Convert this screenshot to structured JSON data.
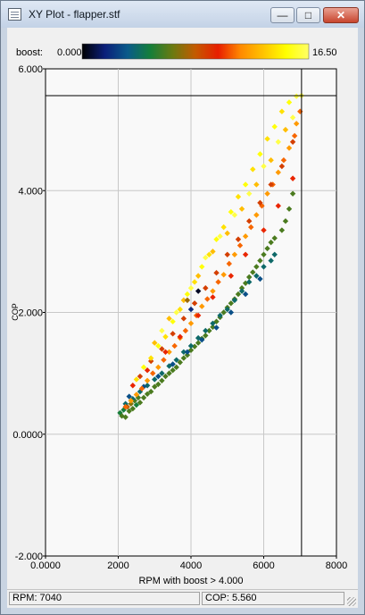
{
  "window": {
    "title": "XY Plot - flapper.stf",
    "buttons": {
      "minimize": "—",
      "maximize": "□",
      "close": "✕"
    }
  },
  "status": {
    "rpm": "RPM: 7040",
    "cop": "COP: 5.560"
  },
  "colors": {
    "plot_bg": "#f9f9f9",
    "grid": "#c8c8c8",
    "cursor": "#000000"
  },
  "chart_data": {
    "type": "scatter",
    "title": "",
    "xlabel": "RPM with boost > 4.000",
    "ylabel": "COP",
    "xlim": [
      0,
      8000
    ],
    "ylim": [
      -2,
      6
    ],
    "xticks": [
      0,
      2000,
      4000,
      6000,
      8000
    ],
    "yticks": [
      -2,
      0,
      2,
      4,
      6
    ],
    "xtick_labels": [
      "0.0000",
      "2000",
      "4000",
      "6000",
      "8000"
    ],
    "ytick_labels": [
      "-2.000",
      "0.0000",
      "2.000",
      "4.000",
      "6.000"
    ],
    "grid": true,
    "cursor": {
      "x": 7040,
      "y": 5.56
    },
    "color_scale": {
      "label": "boost:",
      "min_label": "0.000",
      "max_label": "16.50",
      "min": 0,
      "max": 16.5,
      "stops": [
        "#000000",
        "#0b1f7a",
        "#0a5a8a",
        "#137e3a",
        "#6b7a10",
        "#c45a00",
        "#e81e00",
        "#ff8a00",
        "#ffc400",
        "#ffff00",
        "#ffff66"
      ]
    },
    "series": [
      {
        "color_by": "boost",
        "points": [
          [
            2050,
            0.35,
            5
          ],
          [
            2100,
            0.3,
            6
          ],
          [
            2150,
            0.4,
            5
          ],
          [
            2200,
            0.28,
            6
          ],
          [
            2250,
            0.45,
            8
          ],
          [
            2300,
            0.38,
            6
          ],
          [
            2350,
            0.5,
            7
          ],
          [
            2400,
            0.42,
            6
          ],
          [
            2450,
            0.55,
            6
          ],
          [
            2500,
            0.48,
            5
          ],
          [
            2550,
            0.6,
            6
          ],
          [
            2600,
            0.52,
            6
          ],
          [
            2700,
            0.6,
            6
          ],
          [
            2800,
            0.66,
            6
          ],
          [
            2900,
            0.7,
            6
          ],
          [
            3000,
            0.78,
            6
          ],
          [
            3100,
            0.82,
            6
          ],
          [
            3200,
            0.88,
            6
          ],
          [
            3300,
            0.95,
            6
          ],
          [
            3400,
            1.0,
            6
          ],
          [
            3500,
            1.05,
            6
          ],
          [
            3600,
            1.1,
            6
          ],
          [
            3700,
            1.18,
            6
          ],
          [
            3800,
            1.25,
            6
          ],
          [
            3900,
            1.3,
            6
          ],
          [
            4000,
            1.38,
            6
          ],
          [
            4100,
            1.44,
            6
          ],
          [
            4200,
            1.5,
            6
          ],
          [
            4300,
            1.57,
            6
          ],
          [
            4400,
            1.62,
            6
          ],
          [
            4500,
            1.7,
            6
          ],
          [
            4600,
            1.76,
            6
          ],
          [
            4700,
            1.85,
            6
          ],
          [
            4800,
            1.92,
            6
          ],
          [
            4900,
            2.0,
            6
          ],
          [
            5000,
            2.08,
            6
          ],
          [
            5100,
            2.15,
            6
          ],
          [
            5200,
            2.22,
            6
          ],
          [
            5300,
            2.3,
            6
          ],
          [
            5400,
            2.4,
            6
          ],
          [
            5500,
            2.48,
            6
          ],
          [
            5600,
            2.58,
            6
          ],
          [
            5700,
            2.66,
            6
          ],
          [
            5800,
            2.75,
            6
          ],
          [
            5900,
            2.85,
            6
          ],
          [
            6000,
            2.95,
            6
          ],
          [
            6100,
            3.05,
            6
          ],
          [
            6200,
            3.15,
            6
          ],
          [
            6300,
            3.22,
            6
          ],
          [
            2200,
            0.5,
            4
          ],
          [
            2400,
            0.58,
            4
          ],
          [
            2600,
            0.7,
            4
          ],
          [
            2800,
            0.8,
            4
          ],
          [
            3000,
            0.9,
            4
          ],
          [
            3200,
            1.0,
            4
          ],
          [
            3400,
            1.12,
            4
          ],
          [
            3600,
            1.22,
            4
          ],
          [
            3800,
            1.35,
            4
          ],
          [
            4000,
            1.45,
            4
          ],
          [
            4200,
            1.58,
            4
          ],
          [
            4400,
            1.7,
            4
          ],
          [
            4600,
            1.82,
            4
          ],
          [
            4800,
            1.95,
            4
          ],
          [
            5000,
            2.05,
            4
          ],
          [
            5200,
            2.2,
            4
          ],
          [
            5400,
            2.35,
            4
          ],
          [
            5600,
            2.5,
            4
          ],
          [
            5800,
            2.6,
            4
          ],
          [
            6000,
            2.75,
            4
          ],
          [
            6200,
            2.85,
            4
          ],
          [
            2300,
            0.62,
            3
          ],
          [
            2700,
            0.78,
            3
          ],
          [
            3100,
            0.95,
            3
          ],
          [
            3500,
            1.15,
            3
          ],
          [
            3900,
            1.35,
            3
          ],
          [
            4300,
            1.55,
            3
          ],
          [
            4700,
            1.75,
            3
          ],
          [
            5100,
            2.0,
            3
          ],
          [
            5500,
            2.3,
            3
          ],
          [
            5900,
            2.55,
            3
          ],
          [
            6300,
            2.95,
            4
          ],
          [
            6500,
            3.35,
            6
          ],
          [
            6700,
            3.7,
            6
          ],
          [
            6800,
            3.95,
            6
          ],
          [
            6600,
            3.5,
            6
          ],
          [
            2200,
            0.45,
            11
          ],
          [
            2350,
            0.55,
            12
          ],
          [
            2500,
            0.65,
            12
          ],
          [
            2650,
            0.75,
            11
          ],
          [
            2800,
            0.88,
            12
          ],
          [
            2950,
            1.0,
            11
          ],
          [
            3100,
            1.1,
            12
          ],
          [
            3250,
            1.22,
            11
          ],
          [
            3400,
            1.35,
            12
          ],
          [
            3550,
            1.45,
            11
          ],
          [
            3700,
            1.58,
            12
          ],
          [
            3850,
            1.7,
            11
          ],
          [
            4000,
            1.82,
            12
          ],
          [
            4150,
            1.95,
            11
          ],
          [
            4300,
            2.1,
            12
          ],
          [
            4450,
            2.22,
            11
          ],
          [
            4600,
            2.35,
            12
          ],
          [
            4750,
            2.5,
            11
          ],
          [
            4900,
            2.62,
            12
          ],
          [
            5050,
            2.8,
            11
          ],
          [
            5200,
            2.95,
            12
          ],
          [
            5350,
            3.1,
            11
          ],
          [
            5500,
            3.25,
            12
          ],
          [
            5650,
            3.4,
            11
          ],
          [
            5800,
            3.6,
            12
          ],
          [
            5950,
            3.75,
            11
          ],
          [
            6100,
            3.95,
            12
          ],
          [
            6250,
            4.1,
            11
          ],
          [
            6400,
            4.3,
            12
          ],
          [
            6550,
            4.5,
            11
          ],
          [
            6700,
            4.7,
            12
          ],
          [
            6850,
            4.9,
            11
          ],
          [
            6900,
            5.1,
            12
          ],
          [
            7000,
            5.3,
            11
          ],
          [
            2600,
            0.95,
            9
          ],
          [
            2900,
            1.2,
            9
          ],
          [
            3200,
            1.4,
            9
          ],
          [
            3500,
            1.65,
            9
          ],
          [
            3800,
            1.9,
            9
          ],
          [
            4100,
            2.15,
            9
          ],
          [
            4400,
            2.4,
            9
          ],
          [
            4700,
            2.65,
            9
          ],
          [
            5000,
            2.95,
            9
          ],
          [
            5300,
            3.2,
            9
          ],
          [
            5600,
            3.5,
            9
          ],
          [
            5900,
            3.8,
            9
          ],
          [
            6200,
            4.1,
            9
          ],
          [
            6500,
            4.4,
            9
          ],
          [
            6800,
            4.8,
            9
          ],
          [
            2400,
            0.8,
            10
          ],
          [
            2800,
            1.05,
            10
          ],
          [
            3300,
            1.35,
            10
          ],
          [
            3700,
            1.6,
            10
          ],
          [
            4200,
            1.95,
            10
          ],
          [
            4600,
            2.25,
            10
          ],
          [
            5100,
            2.6,
            10
          ],
          [
            5500,
            2.95,
            10
          ],
          [
            6000,
            3.35,
            10
          ],
          [
            6400,
            3.75,
            10
          ],
          [
            6800,
            4.2,
            10
          ],
          [
            2500,
            0.9,
            14
          ],
          [
            2700,
            1.1,
            15
          ],
          [
            2900,
            1.25,
            14
          ],
          [
            3100,
            1.45,
            15
          ],
          [
            3300,
            1.6,
            14
          ],
          [
            3500,
            1.85,
            15
          ],
          [
            3700,
            2.05,
            14
          ],
          [
            3900,
            2.3,
            15
          ],
          [
            4100,
            2.5,
            14
          ],
          [
            4300,
            2.75,
            15
          ],
          [
            4500,
            2.95,
            14
          ],
          [
            4700,
            3.2,
            15
          ],
          [
            4900,
            3.4,
            14
          ],
          [
            5100,
            3.65,
            15
          ],
          [
            5300,
            3.9,
            14
          ],
          [
            5500,
            4.1,
            15
          ],
          [
            5700,
            4.35,
            14
          ],
          [
            5900,
            4.6,
            15
          ],
          [
            6100,
            4.85,
            14
          ],
          [
            6300,
            5.05,
            15
          ],
          [
            6500,
            5.3,
            14
          ],
          [
            6700,
            5.45,
            15
          ],
          [
            6900,
            5.55,
            16
          ],
          [
            7040,
            5.56,
            16
          ],
          [
            3000,
            1.5,
            13
          ],
          [
            3400,
            1.9,
            13
          ],
          [
            3800,
            2.2,
            13
          ],
          [
            4200,
            2.6,
            13
          ],
          [
            4600,
            3.0,
            13
          ],
          [
            5000,
            3.3,
            13
          ],
          [
            5400,
            3.7,
            13
          ],
          [
            5800,
            4.1,
            13
          ],
          [
            6200,
            4.5,
            13
          ],
          [
            6600,
            5.0,
            13
          ],
          [
            3200,
            1.7,
            16
          ],
          [
            3600,
            2.0,
            16
          ],
          [
            4000,
            2.4,
            16
          ],
          [
            4400,
            2.9,
            16
          ],
          [
            4800,
            3.25,
            16
          ],
          [
            5200,
            3.6,
            16
          ],
          [
            5600,
            3.95,
            16
          ],
          [
            6000,
            4.4,
            16
          ],
          [
            6400,
            4.8,
            16
          ],
          [
            6800,
            5.2,
            16
          ],
          [
            4200,
            2.35,
            0.5
          ],
          [
            3900,
            2.2,
            7.5
          ],
          [
            4000,
            2.05,
            2
          ]
        ]
      }
    ]
  }
}
